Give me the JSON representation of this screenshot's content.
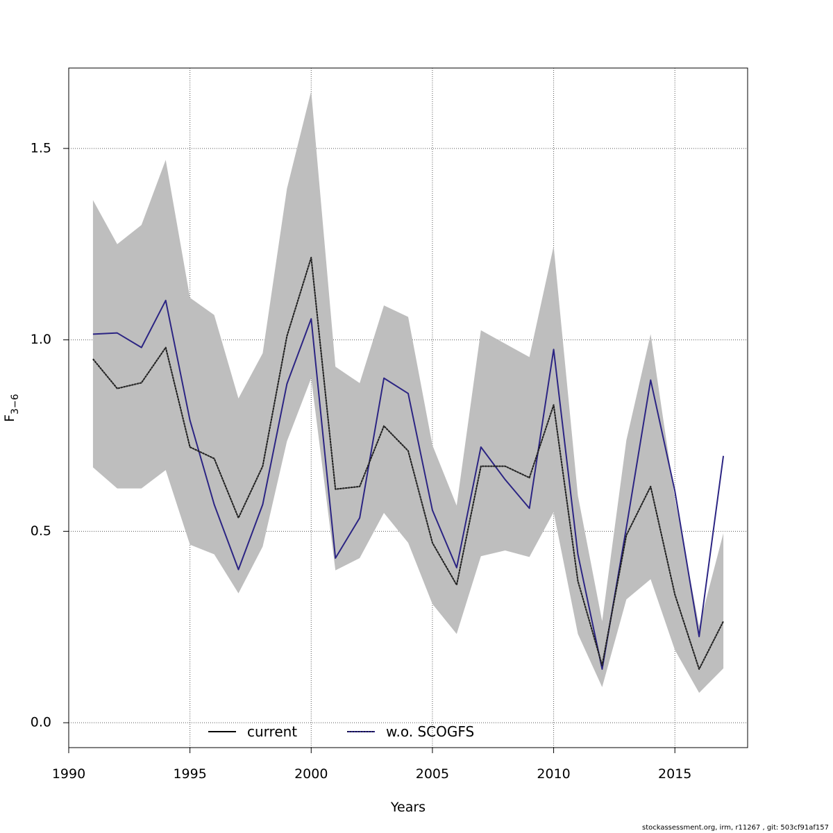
{
  "chart_data": {
    "type": "line",
    "title": "",
    "xlabel": "Years",
    "ylabel": "F",
    "ylabel_subscript": "3−6",
    "xlim": [
      1990,
      2018
    ],
    "ylim": [
      -0.065,
      1.71
    ],
    "x_ticks": [
      1990,
      1995,
      2000,
      2005,
      2010,
      2015
    ],
    "y_ticks": [
      0.0,
      0.5,
      1.0,
      1.5
    ],
    "y_tick_labels": [
      "0.0",
      "0.5",
      "1.0",
      "1.5"
    ],
    "grid": true,
    "legend_position": "bottom-center",
    "x": [
      1991,
      1992,
      1993,
      1994,
      1995,
      1996,
      1997,
      1998,
      1999,
      2000,
      2001,
      2002,
      2003,
      2004,
      2005,
      2006,
      2007,
      2008,
      2009,
      2010,
      2011,
      2012,
      2013,
      2014,
      2015,
      2016,
      2017
    ],
    "series": [
      {
        "name": "current",
        "color": "#000000",
        "values": [
          0.95,
          0.873,
          0.888,
          0.98,
          0.72,
          0.69,
          0.535,
          0.67,
          1.01,
          1.215,
          0.61,
          0.617,
          0.775,
          0.71,
          0.47,
          0.36,
          0.67,
          0.67,
          0.64,
          0.83,
          0.37,
          0.15,
          0.49,
          0.617,
          0.335,
          0.14,
          0.265
        ],
        "ci_lower": [
          0.667,
          0.612,
          0.612,
          0.66,
          0.465,
          0.44,
          0.338,
          0.46,
          0.735,
          0.9,
          0.398,
          0.43,
          0.548,
          0.47,
          0.31,
          0.232,
          0.435,
          0.45,
          0.433,
          0.55,
          0.232,
          0.093,
          0.322,
          0.375,
          0.19,
          0.078,
          0.142
        ],
        "ci_upper": [
          1.365,
          1.25,
          1.3,
          1.47,
          1.11,
          1.065,
          0.847,
          0.965,
          1.395,
          1.65,
          0.93,
          0.887,
          1.09,
          1.06,
          0.725,
          0.567,
          1.025,
          0.99,
          0.955,
          1.245,
          0.593,
          0.265,
          0.738,
          1.015,
          0.587,
          0.252,
          0.495
        ]
      },
      {
        "name": "w.o. SCOGFS",
        "color": "#2b2483",
        "values": [
          1.015,
          1.018,
          0.98,
          1.103,
          0.79,
          0.57,
          0.4,
          0.57,
          0.885,
          1.055,
          0.43,
          0.535,
          0.9,
          0.86,
          0.555,
          0.405,
          0.72,
          0.635,
          0.56,
          0.975,
          0.44,
          0.14,
          0.51,
          0.895,
          0.605,
          0.225,
          0.697
        ]
      }
    ],
    "ci_color": "#bebebe",
    "legend": [
      {
        "label": "current",
        "color": "#000000"
      },
      {
        "label": "w.o. SCOGFS",
        "color": "#2b2483"
      }
    ]
  },
  "footer_text": "stockassessment.org, irm, r11267 , git: 503cf91af157"
}
